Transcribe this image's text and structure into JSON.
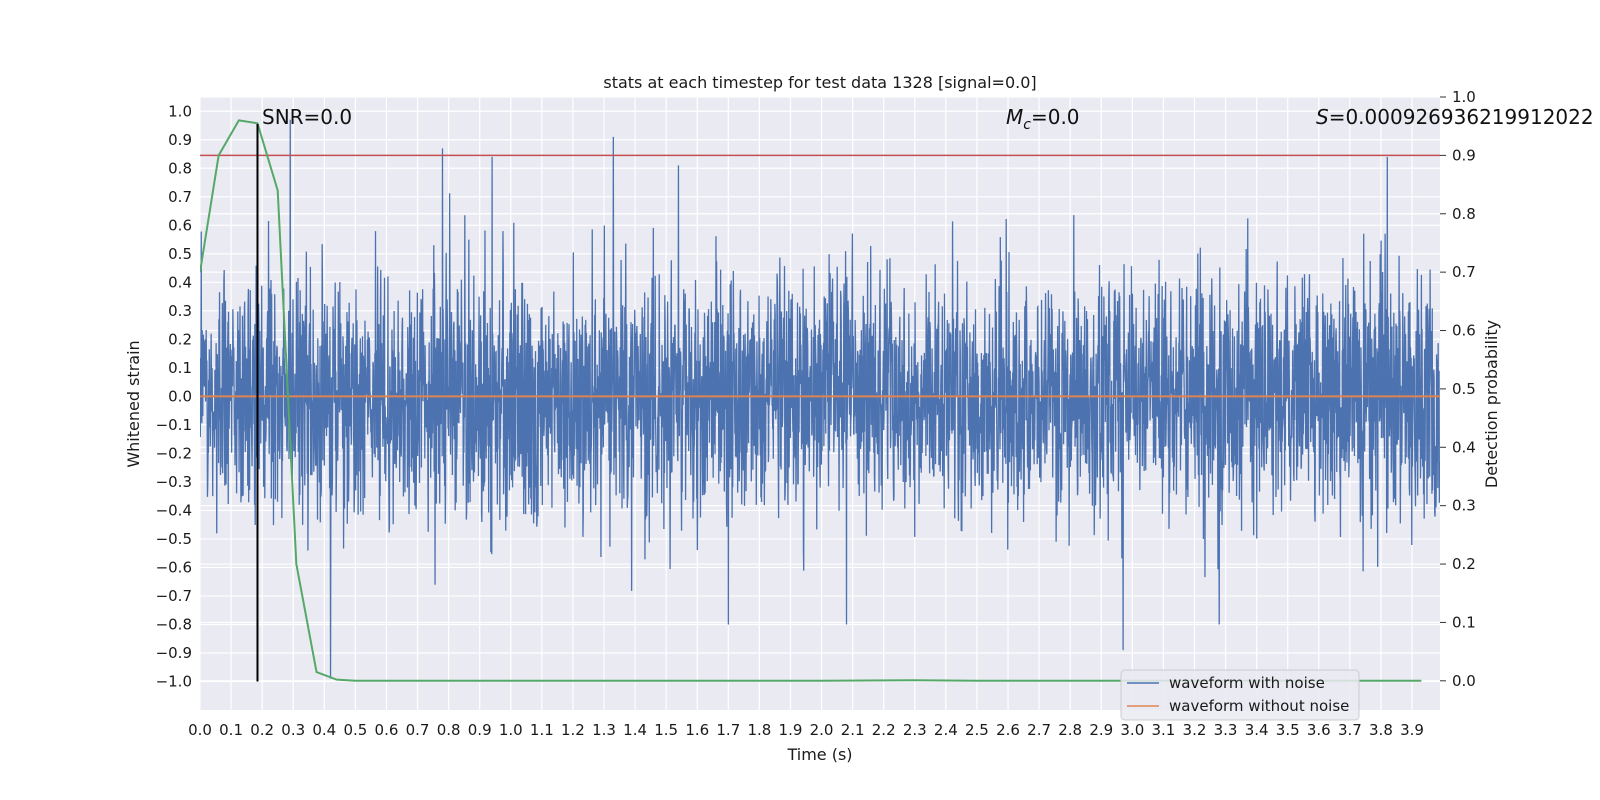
{
  "chart_data": {
    "type": "line",
    "title": "stats at each timestep for test data 1328 [signal=0.0]",
    "xlabel": "Time (s)",
    "ylabel": "Whitened strain",
    "y2label": "Detection probability",
    "xlim": [
      0.0,
      3.99
    ],
    "ylim": [
      -1.1,
      1.05
    ],
    "y2lim": [
      -0.05,
      1.0
    ],
    "grid": true,
    "legend_position": "lower-right",
    "x_ticks": [
      "0.0",
      "0.1",
      "0.2",
      "0.3",
      "0.4",
      "0.5",
      "0.6",
      "0.7",
      "0.8",
      "0.9",
      "1.0",
      "1.1",
      "1.2",
      "1.3",
      "1.4",
      "1.5",
      "1.6",
      "1.7",
      "1.8",
      "1.9",
      "2.0",
      "2.1",
      "2.2",
      "2.3",
      "2.4",
      "2.5",
      "2.6",
      "2.7",
      "2.8",
      "2.9",
      "3.0",
      "3.1",
      "3.2",
      "3.3",
      "3.4",
      "3.5",
      "3.6",
      "3.7",
      "3.8",
      "3.9"
    ],
    "y_ticks": [
      "1.0",
      "0.9",
      "0.8",
      "0.7",
      "0.6",
      "0.5",
      "0.4",
      "0.3",
      "0.2",
      "0.1",
      "0.0",
      "−0.1",
      "−0.2",
      "−0.3",
      "−0.4",
      "−0.5",
      "−0.6",
      "−0.7",
      "−0.8",
      "−0.9",
      "−1.0"
    ],
    "y2_ticks": [
      "1.0",
      "0.9",
      "0.8",
      "0.7",
      "0.6",
      "0.5",
      "0.4",
      "0.3",
      "0.2",
      "0.1",
      "0.0"
    ],
    "annotations": {
      "snr_prefix": "SNR=0.0",
      "mc_symbol": "M",
      "mc_sub": "c",
      "mc_value": "=0.0",
      "s_symbol": "S",
      "s_value": "=0.000926936219912022"
    },
    "series": [
      {
        "name": "waveform with noise",
        "color": "#4c72b0",
        "axis": "left",
        "kind": "noise",
        "x_range": [
          0.0,
          3.99
        ],
        "sample_count": 4000,
        "envelope": {
          "typical_max": 0.5,
          "typical_min": -0.5,
          "peak_max": 0.97,
          "peak_min": -0.99
        },
        "highlighted_peaks": [
          {
            "x": 0.29,
            "y": 0.97
          },
          {
            "x": 0.78,
            "y": 0.87
          },
          {
            "x": 0.94,
            "y": 0.84
          },
          {
            "x": 1.33,
            "y": 0.91
          },
          {
            "x": 1.54,
            "y": 0.81
          },
          {
            "x": 3.82,
            "y": 0.84
          },
          {
            "x": 0.42,
            "y": -0.99
          },
          {
            "x": 2.97,
            "y": -0.89
          },
          {
            "x": 3.28,
            "y": -0.8
          },
          {
            "x": 1.7,
            "y": -0.8
          },
          {
            "x": 2.08,
            "y": -0.8
          }
        ]
      },
      {
        "name": "waveform without noise",
        "color": "#dd8452",
        "axis": "left",
        "x": [
          0.0,
          3.99
        ],
        "y": [
          0.0,
          0.0
        ]
      },
      {
        "name": "",
        "color": "#55a868",
        "axis": "right",
        "x": [
          0.0,
          0.06,
          0.125,
          0.185,
          0.25,
          0.31,
          0.375,
          0.44,
          0.5,
          0.75,
          1.0,
          1.5,
          2.0,
          2.3,
          2.5,
          3.0,
          3.5,
          3.93
        ],
        "y": [
          0.7,
          0.9,
          0.96,
          0.955,
          0.84,
          0.2,
          0.015,
          0.002,
          0.0,
          0.0,
          0.0,
          0.0,
          0.0,
          0.001,
          0.0,
          0.0,
          0.0,
          0.0
        ]
      }
    ],
    "threshold_line": {
      "y2": 0.9,
      "color": "#c44e52"
    },
    "vertical_marker": {
      "x": 0.185,
      "color": "#000000"
    }
  }
}
